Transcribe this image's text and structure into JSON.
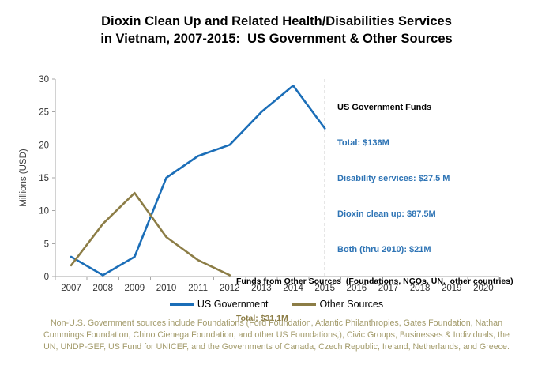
{
  "title": {
    "line1": "Dioxin Clean Up and Related Health/Disabilities Services",
    "line2": "in Vietnam, 2007-2015:  US Government & Other Sources"
  },
  "chart_data": {
    "type": "line",
    "title": "Dioxin Clean Up and Related Health/Disabilities Services in Vietnam, 2007-2015:  US Government & Other Sources",
    "xlabel": "",
    "ylabel": "Millions (USD)",
    "ylim": [
      0,
      30
    ],
    "y_ticks": [
      0,
      5,
      10,
      15,
      20,
      25,
      30
    ],
    "x_labels": [
      "2007",
      "2008",
      "2009",
      "2010",
      "2011",
      "2012",
      "2013",
      "2014",
      "2015",
      "2016",
      "2017",
      "2018",
      "2019",
      "2020"
    ],
    "grid": false,
    "legend_position": "bottom",
    "reference_line": {
      "x": "2015",
      "style": "dashed",
      "color": "#ABABAB"
    },
    "series": [
      {
        "name": "US Government",
        "color": "#1B6EB8",
        "x": [
          "2007",
          "2008",
          "2009",
          "2010",
          "2011",
          "2012",
          "2013",
          "2014",
          "2015"
        ],
        "values": [
          3,
          0.2,
          3,
          15,
          18.3,
          20,
          25,
          29,
          22.5
        ]
      },
      {
        "name": "Other Sources",
        "color": "#8C7D46",
        "x": [
          "2007",
          "2008",
          "2009",
          "2010",
          "2011",
          "2012"
        ],
        "values": [
          1.7,
          8,
          12.7,
          6,
          2.5,
          0.2
        ]
      }
    ],
    "annotations": {
      "us_gov_funds": {
        "heading": "US Government Funds",
        "lines": [
          "Total: $136M",
          "Disability services: $27.5 M",
          "Dioxin clean up: $87.5M",
          "Both (thru 2010): $21M"
        ],
        "color": "#2E74B5"
      },
      "other_sources": {
        "heading": "Funds from Other Sources  (Foundations, NGOs, UN,  other countries)",
        "total": "Total: $31.1M",
        "color": "#8C7D46"
      }
    }
  },
  "footnote": {
    "color": "#A39B6B",
    "lines": [
      "Non-U.S. Government sources include Foundations (Ford Foundation, Atlantic Philanthropies, Gates Foundation, Nathan",
      "Cummings Foundation, Chino Cienega Foundation, and other US Foundations,), Civic Groups, Businesses & Individuals, the",
      "UN, UNDP-GEF, US Fund for UNICEF, and the Governments of Canada, Czech Republic, Ireland, Netherlands, and Greece."
    ]
  },
  "colors": {
    "axis": "#A6A6A6",
    "tick_label": "#333333",
    "background": "#FFFFFF"
  }
}
